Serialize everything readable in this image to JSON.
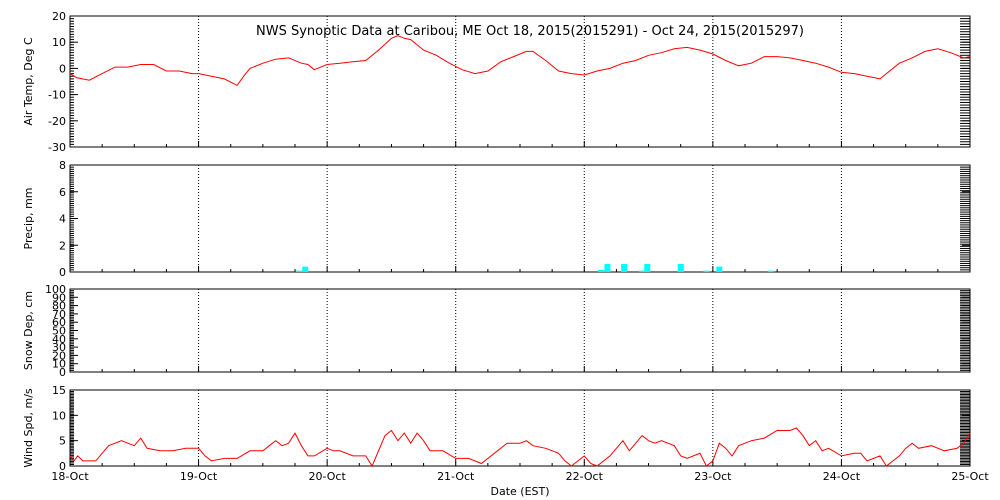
{
  "title": "NWS Synoptic Data at Caribou, ME   Oct 18, 2015(2015291) - Oct 24, 2015(2015297)",
  "xlabel": "Date (EST)",
  "x_ticks": [
    "18-Oct",
    "19-Oct",
    "20-Oct",
    "21-Oct",
    "22-Oct",
    "23-Oct",
    "24-Oct",
    "25-Oct"
  ],
  "colors": {
    "line": "#ff0000",
    "precip": "#00ffff",
    "axes": "#000000"
  },
  "chart_data": [
    {
      "type": "line",
      "ylabel": "Air Temp, Deg C",
      "ylim": [
        -30,
        20
      ],
      "yticks": [
        -30,
        -20,
        -10,
        0,
        10,
        20
      ],
      "grid": true,
      "x_unit": "days since 18-Oct 00:00 EST",
      "points": [
        [
          0,
          -2
        ],
        [
          0.05,
          -3.5
        ],
        [
          0.15,
          -4.5
        ],
        [
          0.25,
          -2
        ],
        [
          0.35,
          0.5
        ],
        [
          0.45,
          0.5
        ],
        [
          0.55,
          1.5
        ],
        [
          0.65,
          1.5
        ],
        [
          0.75,
          -1
        ],
        [
          0.85,
          -1
        ],
        [
          0.95,
          -2
        ],
        [
          1.0,
          -2
        ],
        [
          1.1,
          -3
        ],
        [
          1.2,
          -4
        ],
        [
          1.3,
          -6.5
        ],
        [
          1.35,
          -3
        ],
        [
          1.4,
          0
        ],
        [
          1.5,
          2
        ],
        [
          1.6,
          3.5
        ],
        [
          1.7,
          4
        ],
        [
          1.8,
          2
        ],
        [
          1.85,
          1.5
        ],
        [
          1.9,
          -0.5
        ],
        [
          2.0,
          1.5
        ],
        [
          2.1,
          2
        ],
        [
          2.2,
          2.5
        ],
        [
          2.3,
          3
        ],
        [
          2.4,
          7
        ],
        [
          2.5,
          11.5
        ],
        [
          2.55,
          12.5
        ],
        [
          2.6,
          11.5
        ],
        [
          2.65,
          11
        ],
        [
          2.75,
          7
        ],
        [
          2.85,
          5
        ],
        [
          2.95,
          2
        ],
        [
          3.05,
          -0.5
        ],
        [
          3.15,
          -2
        ],
        [
          3.25,
          -1
        ],
        [
          3.35,
          2.5
        ],
        [
          3.45,
          4.5
        ],
        [
          3.55,
          6.5
        ],
        [
          3.6,
          6.5
        ],
        [
          3.7,
          3
        ],
        [
          3.8,
          -1
        ],
        [
          3.9,
          -2
        ],
        [
          4.0,
          -2.5
        ],
        [
          4.1,
          -1
        ],
        [
          4.2,
          0
        ],
        [
          4.3,
          2
        ],
        [
          4.4,
          3
        ],
        [
          4.5,
          5
        ],
        [
          4.6,
          6
        ],
        [
          4.7,
          7.5
        ],
        [
          4.8,
          8
        ],
        [
          4.9,
          7
        ],
        [
          5.0,
          5.5
        ],
        [
          5.1,
          3
        ],
        [
          5.2,
          1
        ],
        [
          5.3,
          2
        ],
        [
          5.4,
          4.5
        ],
        [
          5.5,
          4.5
        ],
        [
          5.6,
          4
        ],
        [
          5.7,
          3
        ],
        [
          5.8,
          2
        ],
        [
          5.9,
          0.5
        ],
        [
          6.0,
          -1.5
        ],
        [
          6.1,
          -2
        ],
        [
          6.2,
          -3
        ],
        [
          6.3,
          -4
        ],
        [
          6.35,
          -2
        ],
        [
          6.45,
          2
        ],
        [
          6.55,
          4
        ],
        [
          6.65,
          6.5
        ],
        [
          6.75,
          7.5
        ],
        [
          6.85,
          6
        ],
        [
          6.95,
          4
        ],
        [
          7.0,
          4.5
        ]
      ]
    },
    {
      "type": "bar",
      "ylabel": "Precip, mm",
      "ylim": [
        0,
        8
      ],
      "yticks": [
        0,
        2,
        4,
        6,
        8
      ],
      "grid": true,
      "bars": [
        [
          1.78,
          0.1
        ],
        [
          1.83,
          0.4
        ],
        [
          4.13,
          0.15
        ],
        [
          4.18,
          0.6
        ],
        [
          4.31,
          0.6
        ],
        [
          4.45,
          0.1
        ],
        [
          4.49,
          0.6
        ],
        [
          4.75,
          0.6
        ],
        [
          4.95,
          0.1
        ],
        [
          5.05,
          0.4
        ],
        [
          5.45,
          0.1
        ]
      ]
    },
    {
      "type": "line",
      "ylabel": "Snow Dep, cm",
      "ylim": [
        0,
        100
      ],
      "yticks": [
        0,
        10,
        20,
        30,
        40,
        50,
        60,
        70,
        80,
        90,
        100
      ],
      "grid": true,
      "points": []
    },
    {
      "type": "line",
      "ylabel": "Wind Spd, m/s",
      "ylim": [
        0,
        15
      ],
      "yticks": [
        0,
        5,
        10,
        15
      ],
      "grid": true,
      "points": [
        [
          0,
          2
        ],
        [
          0.03,
          1
        ],
        [
          0.06,
          2
        ],
        [
          0.1,
          1
        ],
        [
          0.2,
          1
        ],
        [
          0.3,
          4
        ],
        [
          0.4,
          5
        ],
        [
          0.5,
          4
        ],
        [
          0.55,
          5.5
        ],
        [
          0.6,
          3.5
        ],
        [
          0.7,
          3
        ],
        [
          0.8,
          3
        ],
        [
          0.9,
          3.5
        ],
        [
          1.0,
          3.5
        ],
        [
          1.05,
          2
        ],
        [
          1.1,
          1
        ],
        [
          1.2,
          1.5
        ],
        [
          1.3,
          1.5
        ],
        [
          1.4,
          3
        ],
        [
          1.5,
          3
        ],
        [
          1.55,
          4
        ],
        [
          1.6,
          5
        ],
        [
          1.65,
          4
        ],
        [
          1.7,
          4.5
        ],
        [
          1.75,
          6.5
        ],
        [
          1.8,
          4
        ],
        [
          1.85,
          2
        ],
        [
          1.9,
          2
        ],
        [
          2.0,
          3.5
        ],
        [
          2.05,
          3
        ],
        [
          2.1,
          3
        ],
        [
          2.2,
          2
        ],
        [
          2.3,
          2
        ],
        [
          2.35,
          0
        ],
        [
          2.45,
          6
        ],
        [
          2.5,
          7
        ],
        [
          2.55,
          5
        ],
        [
          2.6,
          6.5
        ],
        [
          2.65,
          4.5
        ],
        [
          2.7,
          6.5
        ],
        [
          2.75,
          5
        ],
        [
          2.8,
          3
        ],
        [
          2.9,
          3
        ],
        [
          3.0,
          1.5
        ],
        [
          3.1,
          1.5
        ],
        [
          3.2,
          0.5
        ],
        [
          3.3,
          2.5
        ],
        [
          3.4,
          4.5
        ],
        [
          3.5,
          4.5
        ],
        [
          3.55,
          5
        ],
        [
          3.6,
          4
        ],
        [
          3.7,
          3.5
        ],
        [
          3.8,
          2.5
        ],
        [
          3.85,
          1
        ],
        [
          3.9,
          0
        ],
        [
          4.0,
          2
        ],
        [
          4.05,
          0.5
        ],
        [
          4.1,
          0
        ],
        [
          4.2,
          2
        ],
        [
          4.3,
          5
        ],
        [
          4.35,
          3
        ],
        [
          4.4,
          4.5
        ],
        [
          4.45,
          6
        ],
        [
          4.5,
          5
        ],
        [
          4.55,
          4.5
        ],
        [
          4.6,
          5
        ],
        [
          4.7,
          4
        ],
        [
          4.75,
          2
        ],
        [
          4.8,
          1.5
        ],
        [
          4.9,
          2.5
        ],
        [
          4.95,
          0
        ],
        [
          5.0,
          1
        ],
        [
          5.05,
          4.5
        ],
        [
          5.1,
          3.5
        ],
        [
          5.15,
          2
        ],
        [
          5.2,
          4
        ],
        [
          5.3,
          5
        ],
        [
          5.4,
          5.5
        ],
        [
          5.5,
          7
        ],
        [
          5.6,
          7
        ],
        [
          5.65,
          7.5
        ],
        [
          5.7,
          6
        ],
        [
          5.75,
          4
        ],
        [
          5.8,
          5
        ],
        [
          5.85,
          3
        ],
        [
          5.9,
          3.5
        ],
        [
          6.0,
          2
        ],
        [
          6.1,
          2.5
        ],
        [
          6.15,
          2.5
        ],
        [
          6.2,
          1
        ],
        [
          6.3,
          2
        ],
        [
          6.35,
          0
        ],
        [
          6.45,
          2
        ],
        [
          6.5,
          3.5
        ],
        [
          6.55,
          4.5
        ],
        [
          6.6,
          3.5
        ],
        [
          6.7,
          4
        ],
        [
          6.8,
          3
        ],
        [
          6.9,
          3.5
        ],
        [
          6.95,
          4.5
        ],
        [
          7.0,
          6.5
        ]
      ]
    }
  ]
}
